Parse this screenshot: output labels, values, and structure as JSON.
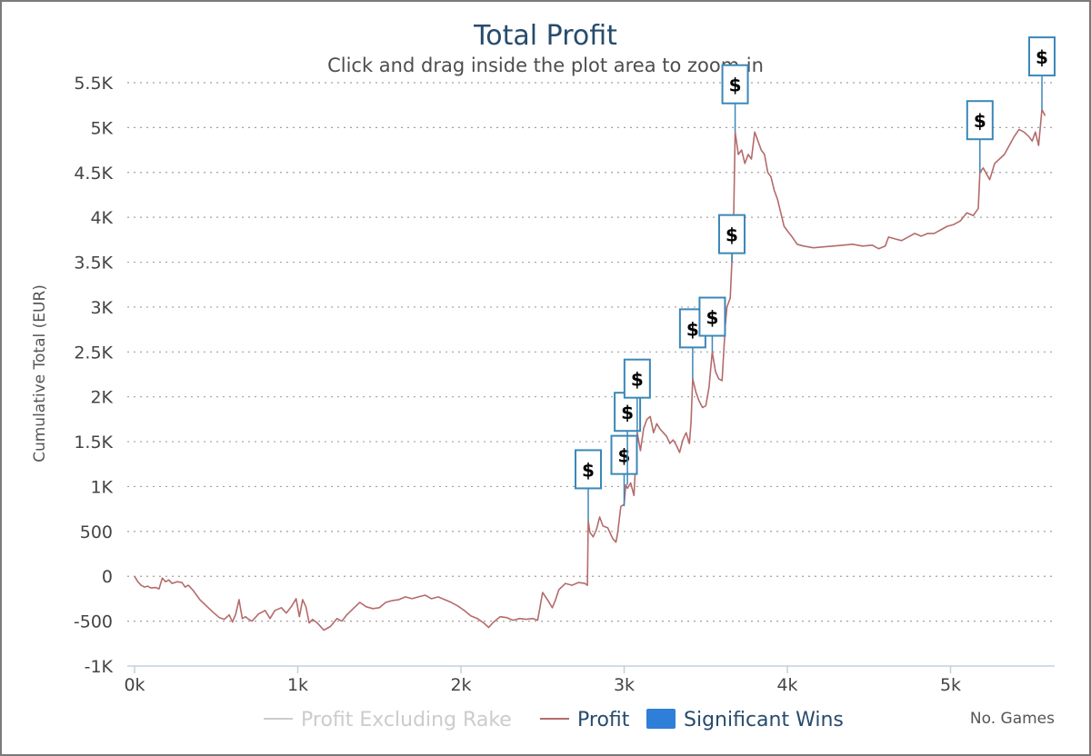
{
  "chart_data": {
    "type": "line",
    "title": "Total Profit",
    "subtitle": "Click and drag inside the plot area to zoom-in",
    "ylabel": "Cumulative Total (EUR)",
    "xlabel": "No. Games",
    "xlim": [
      0,
      5600
    ],
    "ylim": [
      -1000,
      5500
    ],
    "x_tick_values": [
      0,
      1000,
      2000,
      3000,
      4000,
      5000
    ],
    "x_tick_labels": [
      "0k",
      "1k",
      "2k",
      "3k",
      "4k",
      "5k"
    ],
    "y_tick_values": [
      -1000,
      -500,
      0,
      500,
      1000,
      1500,
      2000,
      2500,
      3000,
      3500,
      4000,
      4500,
      5000,
      5500
    ],
    "y_tick_labels": [
      "-1K",
      "-500",
      "0",
      "500",
      "1K",
      "1.5K",
      "2K",
      "2.5K",
      "3K",
      "3.5K",
      "4K",
      "4.5K",
      "5K",
      "5.5K"
    ],
    "grid": true,
    "legend_placement": "bottom-center",
    "colors": {
      "profit": "#b56b6b",
      "profit_excluding_rake": "#cccccc",
      "significant_wins": "#2f7ed8",
      "flag_border": "#3b87b8",
      "title": "#274b6d"
    },
    "series": [
      {
        "name": "Profit",
        "points": [
          [
            0,
            0
          ],
          [
            20,
            -60
          ],
          [
            40,
            -100
          ],
          [
            60,
            -120
          ],
          [
            80,
            -110
          ],
          [
            100,
            -130
          ],
          [
            130,
            -125
          ],
          [
            150,
            -140
          ],
          [
            170,
            -20
          ],
          [
            190,
            -60
          ],
          [
            210,
            -40
          ],
          [
            230,
            -80
          ],
          [
            260,
            -60
          ],
          [
            290,
            -70
          ],
          [
            310,
            -120
          ],
          [
            330,
            -100
          ],
          [
            360,
            -160
          ],
          [
            400,
            -260
          ],
          [
            440,
            -330
          ],
          [
            480,
            -400
          ],
          [
            520,
            -460
          ],
          [
            550,
            -480
          ],
          [
            580,
            -430
          ],
          [
            600,
            -510
          ],
          [
            620,
            -420
          ],
          [
            640,
            -260
          ],
          [
            660,
            -470
          ],
          [
            680,
            -450
          ],
          [
            700,
            -480
          ],
          [
            720,
            -500
          ],
          [
            760,
            -420
          ],
          [
            800,
            -380
          ],
          [
            830,
            -470
          ],
          [
            860,
            -380
          ],
          [
            900,
            -350
          ],
          [
            930,
            -410
          ],
          [
            960,
            -340
          ],
          [
            990,
            -250
          ],
          [
            1010,
            -450
          ],
          [
            1030,
            -260
          ],
          [
            1050,
            -340
          ],
          [
            1070,
            -520
          ],
          [
            1090,
            -480
          ],
          [
            1120,
            -520
          ],
          [
            1160,
            -600
          ],
          [
            1200,
            -560
          ],
          [
            1240,
            -470
          ],
          [
            1270,
            -500
          ],
          [
            1300,
            -430
          ],
          [
            1340,
            -360
          ],
          [
            1380,
            -290
          ],
          [
            1420,
            -340
          ],
          [
            1460,
            -360
          ],
          [
            1500,
            -350
          ],
          [
            1540,
            -290
          ],
          [
            1580,
            -270
          ],
          [
            1620,
            -260
          ],
          [
            1660,
            -230
          ],
          [
            1700,
            -250
          ],
          [
            1740,
            -230
          ],
          [
            1780,
            -210
          ],
          [
            1820,
            -250
          ],
          [
            1860,
            -230
          ],
          [
            1900,
            -260
          ],
          [
            1940,
            -290
          ],
          [
            1980,
            -330
          ],
          [
            2020,
            -380
          ],
          [
            2060,
            -440
          ],
          [
            2100,
            -470
          ],
          [
            2140,
            -520
          ],
          [
            2170,
            -570
          ],
          [
            2200,
            -510
          ],
          [
            2240,
            -450
          ],
          [
            2280,
            -460
          ],
          [
            2320,
            -490
          ],
          [
            2360,
            -470
          ],
          [
            2400,
            -480
          ],
          [
            2440,
            -470
          ],
          [
            2470,
            -490
          ],
          [
            2500,
            -180
          ],
          [
            2530,
            -260
          ],
          [
            2560,
            -350
          ],
          [
            2580,
            -260
          ],
          [
            2600,
            -150
          ],
          [
            2640,
            -80
          ],
          [
            2680,
            -100
          ],
          [
            2720,
            -70
          ],
          [
            2760,
            -80
          ],
          [
            2775,
            -100
          ],
          [
            2780,
            620
          ],
          [
            2790,
            490
          ],
          [
            2810,
            440
          ],
          [
            2830,
            520
          ],
          [
            2850,
            660
          ],
          [
            2870,
            560
          ],
          [
            2900,
            540
          ],
          [
            2930,
            420
          ],
          [
            2950,
            380
          ],
          [
            2960,
            480
          ],
          [
            2980,
            780
          ],
          [
            3000,
            800
          ],
          [
            3010,
            1020
          ],
          [
            3020,
            980
          ],
          [
            3040,
            1040
          ],
          [
            3060,
            900
          ],
          [
            3080,
            1600
          ],
          [
            3100,
            1400
          ],
          [
            3120,
            1650
          ],
          [
            3140,
            1750
          ],
          [
            3160,
            1780
          ],
          [
            3180,
            1600
          ],
          [
            3200,
            1700
          ],
          [
            3220,
            1640
          ],
          [
            3240,
            1600
          ],
          [
            3260,
            1560
          ],
          [
            3280,
            1480
          ],
          [
            3300,
            1520
          ],
          [
            3320,
            1460
          ],
          [
            3340,
            1380
          ],
          [
            3360,
            1520
          ],
          [
            3380,
            1600
          ],
          [
            3400,
            1480
          ],
          [
            3410,
            1720
          ],
          [
            3420,
            2200
          ],
          [
            3440,
            2050
          ],
          [
            3460,
            1950
          ],
          [
            3480,
            1880
          ],
          [
            3500,
            1900
          ],
          [
            3520,
            2100
          ],
          [
            3540,
            2500
          ],
          [
            3560,
            2280
          ],
          [
            3580,
            2200
          ],
          [
            3600,
            2180
          ],
          [
            3620,
            2800
          ],
          [
            3630,
            3000
          ],
          [
            3650,
            3100
          ],
          [
            3660,
            3500
          ],
          [
            3670,
            3900
          ],
          [
            3680,
            4950
          ],
          [
            3700,
            4700
          ],
          [
            3720,
            4750
          ],
          [
            3740,
            4600
          ],
          [
            3760,
            4700
          ],
          [
            3780,
            4650
          ],
          [
            3800,
            4950
          ],
          [
            3820,
            4850
          ],
          [
            3840,
            4750
          ],
          [
            3860,
            4700
          ],
          [
            3880,
            4500
          ],
          [
            3900,
            4450
          ],
          [
            3920,
            4300
          ],
          [
            3940,
            4200
          ],
          [
            3960,
            4050
          ],
          [
            3980,
            3900
          ],
          [
            4000,
            3850
          ],
          [
            4030,
            3780
          ],
          [
            4060,
            3700
          ],
          [
            4100,
            3680
          ],
          [
            4160,
            3660
          ],
          [
            4220,
            3670
          ],
          [
            4280,
            3680
          ],
          [
            4340,
            3690
          ],
          [
            4400,
            3700
          ],
          [
            4460,
            3680
          ],
          [
            4520,
            3690
          ],
          [
            4560,
            3650
          ],
          [
            4600,
            3680
          ],
          [
            4620,
            3780
          ],
          [
            4660,
            3760
          ],
          [
            4700,
            3740
          ],
          [
            4740,
            3780
          ],
          [
            4780,
            3820
          ],
          [
            4820,
            3790
          ],
          [
            4860,
            3820
          ],
          [
            4900,
            3820
          ],
          [
            4940,
            3860
          ],
          [
            4980,
            3900
          ],
          [
            5020,
            3920
          ],
          [
            5060,
            3960
          ],
          [
            5100,
            4050
          ],
          [
            5140,
            4020
          ],
          [
            5170,
            4100
          ],
          [
            5180,
            4500
          ],
          [
            5200,
            4550
          ],
          [
            5240,
            4420
          ],
          [
            5270,
            4600
          ],
          [
            5300,
            4650
          ],
          [
            5330,
            4700
          ],
          [
            5360,
            4800
          ],
          [
            5390,
            4900
          ],
          [
            5420,
            4980
          ],
          [
            5450,
            4950
          ],
          [
            5480,
            4900
          ],
          [
            5500,
            4850
          ],
          [
            5520,
            4950
          ],
          [
            5540,
            4800
          ],
          [
            5560,
            5200
          ],
          [
            5580,
            5130
          ]
        ]
      },
      {
        "name": "Profit Excluding Rake",
        "visible": false,
        "points": []
      }
    ],
    "flags": {
      "name": "Significant Wins",
      "label": "$",
      "items": [
        {
          "x": 2780,
          "y": 620,
          "tx": 2780,
          "ty": 980
        },
        {
          "x": 3000,
          "y": 780,
          "tx": 3000,
          "ty": 1140
        },
        {
          "x": 3020,
          "y": 1020,
          "tx": 3020,
          "ty": 1620
        },
        {
          "x": 3080,
          "y": 1600,
          "tx": 3080,
          "ty": 1990
        },
        {
          "x": 3420,
          "y": 2200,
          "tx": 3420,
          "ty": 2550
        },
        {
          "x": 3540,
          "y": 2500,
          "tx": 3540,
          "ty": 2680
        },
        {
          "x": 3660,
          "y": 3500,
          "tx": 3660,
          "ty": 3600
        },
        {
          "x": 3680,
          "y": 4950,
          "tx": 3680,
          "ty": 5270
        },
        {
          "x": 5180,
          "y": 4500,
          "tx": 5180,
          "ty": 4870
        },
        {
          "x": 5560,
          "y": 5200,
          "tx": 5560,
          "ty": 5580
        }
      ]
    }
  },
  "legend": {
    "items": [
      {
        "label": "Profit Excluding Rake",
        "color": "#cccccc",
        "text_color": "#cccccc",
        "marker": "line"
      },
      {
        "label": "Profit",
        "color": "#b56b6b",
        "text_color": "#274b6d",
        "marker": "line"
      },
      {
        "label": "Significant Wins",
        "color": "#2f7ed8",
        "text_color": "#274b6d",
        "marker": "box"
      }
    ]
  }
}
